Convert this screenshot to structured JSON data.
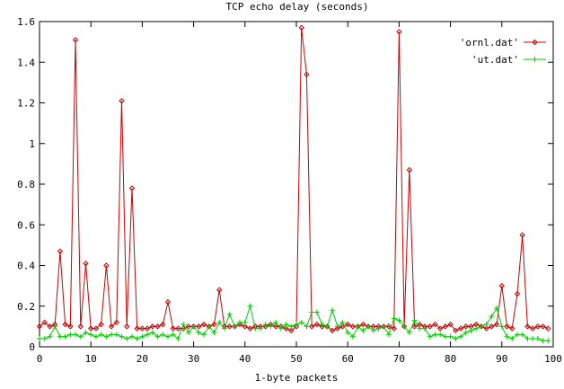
{
  "chart_data": {
    "type": "line",
    "title": "TCP echo delay (seconds)",
    "xlabel": "1-byte packets",
    "ylabel": "",
    "xlim": [
      0,
      100
    ],
    "ylim": [
      0,
      1.6
    ],
    "xticks": [
      0,
      10,
      20,
      30,
      40,
      50,
      60,
      70,
      80,
      90,
      100
    ],
    "yticks": [
      0,
      0.2,
      0.4,
      0.6,
      0.8,
      1,
      1.2,
      1.4,
      1.6
    ],
    "xtick_labels": [
      "0",
      "10",
      "20",
      "30",
      "40",
      "50",
      "60",
      "70",
      "80",
      "90",
      "100"
    ],
    "ytick_labels": [
      "0",
      "0.2",
      "0.4",
      "0.6",
      "0.8",
      "1",
      "1.2",
      "1.4",
      "1.6"
    ],
    "grid": false,
    "legend_position": "top-right",
    "series": [
      {
        "name": "'ornl.dat'",
        "color": "#cc0000",
        "marker": "diamond",
        "x": [
          0,
          1,
          2,
          3,
          4,
          5,
          6,
          7,
          8,
          9,
          10,
          11,
          12,
          13,
          14,
          15,
          16,
          17,
          18,
          19,
          20,
          21,
          22,
          23,
          24,
          25,
          26,
          27,
          28,
          29,
          30,
          31,
          32,
          33,
          34,
          35,
          36,
          37,
          38,
          39,
          40,
          41,
          42,
          43,
          44,
          45,
          46,
          47,
          48,
          49,
          50,
          51,
          52,
          53,
          54,
          55,
          56,
          57,
          58,
          59,
          60,
          61,
          62,
          63,
          64,
          65,
          66,
          67,
          68,
          69,
          70,
          71,
          72,
          73,
          74,
          75,
          76,
          77,
          78,
          79,
          80,
          81,
          82,
          83,
          84,
          85,
          86,
          87,
          88,
          89,
          90,
          91,
          92,
          93,
          94,
          95,
          96,
          97,
          98,
          99
        ],
        "y": [
          0.1,
          0.12,
          0.1,
          0.11,
          0.47,
          0.11,
          0.1,
          1.51,
          0.1,
          0.41,
          0.09,
          0.09,
          0.11,
          0.4,
          0.1,
          0.12,
          1.21,
          0.1,
          0.78,
          0.09,
          0.09,
          0.09,
          0.1,
          0.1,
          0.11,
          0.22,
          0.09,
          0.09,
          0.09,
          0.1,
          0.1,
          0.1,
          0.11,
          0.1,
          0.11,
          0.28,
          0.1,
          0.1,
          0.1,
          0.11,
          0.1,
          0.09,
          0.1,
          0.1,
          0.1,
          0.11,
          0.1,
          0.1,
          0.09,
          0.08,
          0.1,
          1.57,
          1.34,
          0.1,
          0.11,
          0.1,
          0.1,
          0.08,
          0.09,
          0.1,
          0.11,
          0.1,
          0.1,
          0.11,
          0.1,
          0.1,
          0.1,
          0.1,
          0.1,
          0.09,
          1.55,
          0.1,
          0.87,
          0.1,
          0.11,
          0.1,
          0.1,
          0.11,
          0.09,
          0.1,
          0.11,
          0.08,
          0.09,
          0.1,
          0.1,
          0.11,
          0.1,
          0.09,
          0.1,
          0.11,
          0.3,
          0.1,
          0.09,
          0.26,
          0.55,
          0.1,
          0.09,
          0.1,
          0.1,
          0.09
        ]
      },
      {
        "name": "'ut.dat'",
        "color": "#00cc00",
        "marker": "plus",
        "x": [
          0,
          1,
          2,
          3,
          4,
          5,
          6,
          7,
          8,
          9,
          10,
          11,
          12,
          13,
          14,
          15,
          16,
          17,
          18,
          19,
          20,
          21,
          22,
          23,
          24,
          25,
          26,
          27,
          28,
          29,
          30,
          31,
          32,
          33,
          34,
          35,
          36,
          37,
          38,
          39,
          40,
          41,
          42,
          43,
          44,
          45,
          46,
          47,
          48,
          49,
          50,
          51,
          52,
          53,
          54,
          55,
          56,
          57,
          58,
          59,
          60,
          61,
          62,
          63,
          64,
          65,
          66,
          67,
          68,
          69,
          70,
          71,
          72,
          73,
          74,
          75,
          76,
          77,
          78,
          79,
          80,
          81,
          82,
          83,
          84,
          85,
          86,
          87,
          88,
          89,
          90,
          91,
          92,
          93,
          94,
          95,
          96,
          97,
          98,
          99
        ],
        "y": [
          0.04,
          0.04,
          0.05,
          0.1,
          0.05,
          0.05,
          0.06,
          0.06,
          0.05,
          0.07,
          0.06,
          0.05,
          0.06,
          0.05,
          0.06,
          0.06,
          0.05,
          0.04,
          0.05,
          0.04,
          0.05,
          0.06,
          0.07,
          0.05,
          0.06,
          0.05,
          0.06,
          0.04,
          0.11,
          0.07,
          0.1,
          0.07,
          0.06,
          0.1,
          0.07,
          0.12,
          0.09,
          0.16,
          0.1,
          0.12,
          0.12,
          0.2,
          0.09,
          0.09,
          0.11,
          0.1,
          0.12,
          0.09,
          0.11,
          0.1,
          0.11,
          0.12,
          0.1,
          0.17,
          0.17,
          0.11,
          0.1,
          0.18,
          0.1,
          0.12,
          0.07,
          0.05,
          0.1,
          0.08,
          0.1,
          0.08,
          0.09,
          0.1,
          0.06,
          0.14,
          0.13,
          0.1,
          0.07,
          0.13,
          0.09,
          0.09,
          0.05,
          0.06,
          0.06,
          0.05,
          0.05,
          0.04,
          0.05,
          0.07,
          0.08,
          0.09,
          0.1,
          0.11,
          0.15,
          0.19,
          0.1,
          0.05,
          0.04,
          0.06,
          0.06,
          0.04,
          0.04,
          0.04,
          0.03,
          0.03
        ]
      }
    ]
  }
}
